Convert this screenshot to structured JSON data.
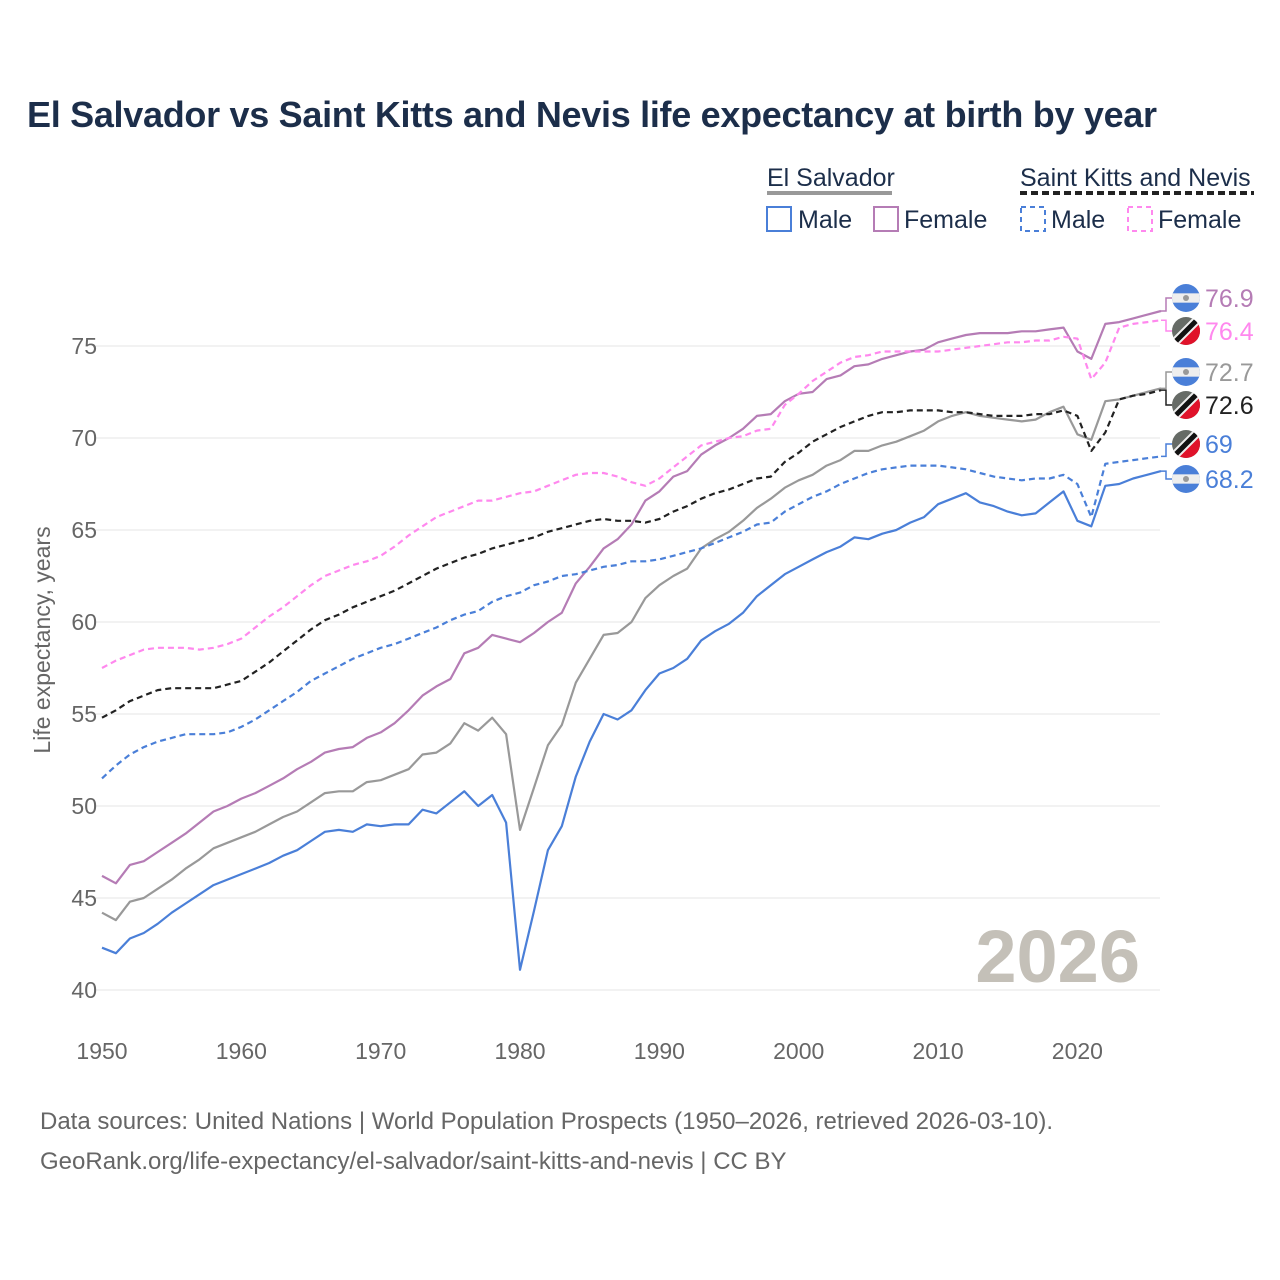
{
  "title": "El Salvador vs Saint Kitts and Nevis life expectancy at birth by year",
  "watermark_year": "2026",
  "footer": {
    "line1": "Data sources: United Nations | World Population Prospects (1950–2026, retrieved 2026-03-10).",
    "line2": "GeoRank.org/life-expectancy/el-salvador/saint-kitts-and-nevis | CC BY"
  },
  "legend": {
    "groups": [
      {
        "country": "El Salvador",
        "style": "solid",
        "color": "#999999",
        "items": [
          {
            "label": "Male",
            "color": "#4a7fd8"
          },
          {
            "label": "Female",
            "color": "#b57cb5"
          }
        ]
      },
      {
        "country": "Saint Kitts and Nevis",
        "style": "dashed",
        "color": "#222222",
        "items": [
          {
            "label": "Male",
            "color": "#4a7fd8"
          },
          {
            "label": "Female",
            "color": "#ff88ee"
          }
        ]
      }
    ]
  },
  "chart_data": {
    "type": "line",
    "title": "El Salvador vs Saint Kitts and Nevis life expectancy at birth by year",
    "xlabel": "",
    "ylabel": "Life expectancy, years",
    "xlim": [
      1950,
      2026
    ],
    "ylim": [
      40,
      77
    ],
    "xticks": [
      "1950",
      "1960",
      "1970",
      "1980",
      "1990",
      "2000",
      "2010",
      "2020"
    ],
    "yticks": [
      "40",
      "45",
      "50",
      "55",
      "60",
      "65",
      "70",
      "75"
    ],
    "grid": true,
    "legend_position": "top-right",
    "x_start": 1950,
    "series": [
      {
        "name": "El Salvador Female",
        "color": "#b57cb5",
        "dashed": false,
        "end_label": "76.9",
        "flag": "el-salvador",
        "values": [
          46.2,
          45.8,
          46.8,
          47.0,
          47.5,
          48.0,
          48.5,
          49.1,
          49.7,
          50.0,
          50.4,
          50.7,
          51.1,
          51.5,
          52.0,
          52.4,
          52.9,
          53.1,
          53.2,
          53.7,
          54.0,
          54.5,
          55.2,
          56.0,
          56.5,
          56.9,
          58.3,
          58.6,
          59.3,
          59.1,
          58.9,
          59.4,
          60.0,
          60.5,
          62.1,
          63.0,
          64.0,
          64.5,
          65.3,
          66.6,
          67.1,
          67.9,
          68.2,
          69.1,
          69.6,
          70.0,
          70.5,
          71.2,
          71.3,
          72.0,
          72.4,
          72.5,
          73.2,
          73.4,
          73.9,
          74.0,
          74.3,
          74.5,
          74.7,
          74.8,
          75.2,
          75.4,
          75.6,
          75.7,
          75.7,
          75.7,
          75.8,
          75.8,
          75.9,
          76.0,
          74.7,
          74.3,
          76.2,
          76.3,
          76.5,
          76.7,
          76.9
        ]
      },
      {
        "name": "Saint Kitts and Nevis Female",
        "color": "#ff88ee",
        "dashed": true,
        "end_label": "76.4",
        "flag": "saint-kitts-and-nevis",
        "values": [
          57.5,
          57.9,
          58.2,
          58.5,
          58.6,
          58.6,
          58.6,
          58.5,
          58.6,
          58.8,
          59.1,
          59.7,
          60.3,
          60.8,
          61.4,
          62.0,
          62.5,
          62.8,
          63.1,
          63.3,
          63.6,
          64.1,
          64.7,
          65.2,
          65.7,
          66.0,
          66.3,
          66.6,
          66.6,
          66.8,
          67.0,
          67.1,
          67.4,
          67.7,
          68.0,
          68.1,
          68.1,
          67.9,
          67.6,
          67.4,
          67.8,
          68.4,
          69.0,
          69.6,
          69.8,
          70.0,
          70.1,
          70.4,
          70.5,
          71.8,
          72.4,
          73.1,
          73.6,
          74.1,
          74.4,
          74.5,
          74.7,
          74.7,
          74.7,
          74.7,
          74.7,
          74.8,
          74.9,
          75.0,
          75.1,
          75.2,
          75.2,
          75.3,
          75.3,
          75.5,
          75.4,
          73.2,
          74.1,
          76.0,
          76.2,
          76.3,
          76.4
        ]
      },
      {
        "name": "El Salvador",
        "color": "#999999",
        "dashed": false,
        "end_label": "72.7",
        "flag": "el-salvador",
        "values": [
          44.2,
          43.8,
          44.8,
          45.0,
          45.5,
          46.0,
          46.6,
          47.1,
          47.7,
          48.0,
          48.3,
          48.6,
          49.0,
          49.4,
          49.7,
          50.2,
          50.7,
          50.8,
          50.8,
          51.3,
          51.4,
          51.7,
          52.0,
          52.8,
          52.9,
          53.4,
          54.5,
          54.1,
          54.8,
          53.9,
          48.7,
          51.0,
          53.3,
          54.4,
          56.7,
          58.0,
          59.3,
          59.4,
          60.0,
          61.3,
          62.0,
          62.5,
          62.9,
          64.0,
          64.5,
          64.9,
          65.5,
          66.2,
          66.7,
          67.3,
          67.7,
          68.0,
          68.5,
          68.8,
          69.3,
          69.3,
          69.6,
          69.8,
          70.1,
          70.4,
          70.9,
          71.2,
          71.4,
          71.2,
          71.1,
          71.0,
          70.9,
          71.0,
          71.4,
          71.7,
          70.2,
          69.9,
          72.0,
          72.1,
          72.3,
          72.5,
          72.7
        ]
      },
      {
        "name": "Saint Kitts and Nevis",
        "color": "#222222",
        "dashed": true,
        "end_label": "72.6",
        "flag": "saint-kitts-and-nevis",
        "values": [
          54.8,
          55.2,
          55.7,
          56.0,
          56.3,
          56.4,
          56.4,
          56.4,
          56.4,
          56.6,
          56.8,
          57.3,
          57.8,
          58.4,
          59.0,
          59.6,
          60.1,
          60.4,
          60.8,
          61.1,
          61.4,
          61.7,
          62.1,
          62.5,
          62.9,
          63.2,
          63.5,
          63.7,
          64.0,
          64.2,
          64.4,
          64.6,
          64.9,
          65.1,
          65.3,
          65.5,
          65.6,
          65.5,
          65.5,
          65.4,
          65.6,
          66.0,
          66.3,
          66.7,
          67.0,
          67.2,
          67.5,
          67.8,
          67.9,
          68.7,
          69.2,
          69.8,
          70.2,
          70.6,
          70.9,
          71.2,
          71.4,
          71.4,
          71.5,
          71.5,
          71.5,
          71.4,
          71.4,
          71.3,
          71.2,
          71.2,
          71.2,
          71.3,
          71.3,
          71.5,
          71.2,
          69.3,
          70.3,
          72.1,
          72.3,
          72.4,
          72.6
        ]
      },
      {
        "name": "Saint Kitts and Nevis Male",
        "color": "#4a7fd8",
        "dashed": true,
        "end_label": "69",
        "flag": "saint-kitts-and-nevis",
        "values": [
          51.5,
          52.2,
          52.8,
          53.2,
          53.5,
          53.7,
          53.9,
          53.9,
          53.9,
          54.0,
          54.3,
          54.7,
          55.2,
          55.7,
          56.2,
          56.8,
          57.2,
          57.6,
          58.0,
          58.3,
          58.6,
          58.8,
          59.1,
          59.4,
          59.7,
          60.1,
          60.4,
          60.6,
          61.1,
          61.4,
          61.6,
          62.0,
          62.2,
          62.5,
          62.6,
          62.8,
          63.0,
          63.1,
          63.3,
          63.3,
          63.4,
          63.6,
          63.8,
          64.0,
          64.3,
          64.6,
          64.9,
          65.3,
          65.4,
          66.0,
          66.4,
          66.8,
          67.1,
          67.5,
          67.8,
          68.1,
          68.3,
          68.4,
          68.5,
          68.5,
          68.5,
          68.4,
          68.3,
          68.1,
          67.9,
          67.8,
          67.7,
          67.8,
          67.8,
          68.0,
          67.5,
          65.7,
          68.6,
          68.7,
          68.8,
          68.9,
          69.0
        ]
      },
      {
        "name": "El Salvador Male",
        "color": "#4a7fd8",
        "dashed": false,
        "end_label": "68.2",
        "flag": "el-salvador",
        "values": [
          42.3,
          42.0,
          42.8,
          43.1,
          43.6,
          44.2,
          44.7,
          45.2,
          45.7,
          46.0,
          46.3,
          46.6,
          46.9,
          47.3,
          47.6,
          48.1,
          48.6,
          48.7,
          48.6,
          49.0,
          48.9,
          49.0,
          49.0,
          49.8,
          49.6,
          50.2,
          50.8,
          50.0,
          50.6,
          49.1,
          41.1,
          44.3,
          47.6,
          48.9,
          51.6,
          53.5,
          55.0,
          54.7,
          55.2,
          56.3,
          57.2,
          57.5,
          58.0,
          59.0,
          59.5,
          59.9,
          60.5,
          61.4,
          62.0,
          62.6,
          63.0,
          63.4,
          63.8,
          64.1,
          64.6,
          64.5,
          64.8,
          65.0,
          65.4,
          65.7,
          66.4,
          66.7,
          67.0,
          66.5,
          66.3,
          66.0,
          65.8,
          65.9,
          66.5,
          67.1,
          65.5,
          65.2,
          67.4,
          67.5,
          67.8,
          68.0,
          68.2
        ]
      }
    ]
  }
}
